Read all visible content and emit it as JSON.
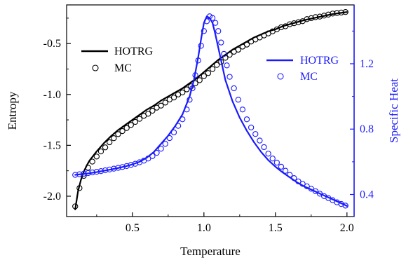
{
  "chart_data": {
    "type": "line",
    "xlabel": "Temperature",
    "ylabel_left": "Entropy",
    "ylabel_right": "Specific Heat",
    "xlim": [
      0.04,
      2.05
    ],
    "ylim_left": [
      -2.2,
      -0.12
    ],
    "ylim_right": [
      0.265,
      1.56
    ],
    "xticks": [
      "0.5",
      "1.0",
      "1.5",
      "2.0"
    ],
    "yticks_left": [
      "-0.5",
      "-1.0",
      "-1.5",
      "-2.0"
    ],
    "yticks_right": [
      "1.2",
      "0.8",
      "0.4"
    ],
    "grid": false,
    "colors": {
      "entropy": "#000000",
      "specific_heat": "#1a1aff"
    },
    "legend_left": {
      "position": "top-left",
      "entries": [
        "HOTRG",
        "MC"
      ]
    },
    "legend_right": {
      "position": "top-right",
      "entries": [
        "HOTRG",
        "MC"
      ]
    },
    "series": [
      {
        "name": "HOTRG",
        "axis": "left",
        "style": "line",
        "x": [
          0.1,
          0.12,
          0.14,
          0.16,
          0.18,
          0.2,
          0.25,
          0.3,
          0.35,
          0.4,
          0.45,
          0.5,
          0.55,
          0.6,
          0.65,
          0.7,
          0.75,
          0.8,
          0.85,
          0.9,
          0.95,
          1.0,
          1.05,
          1.1,
          1.15,
          1.2,
          1.25,
          1.3,
          1.35,
          1.4,
          1.45,
          1.5,
          1.55,
          1.6,
          1.65,
          1.7,
          1.75,
          1.8,
          1.85,
          1.9,
          1.95,
          2.0
        ],
        "y": [
          -2.13,
          -1.95,
          -1.84,
          -1.76,
          -1.7,
          -1.65,
          -1.56,
          -1.48,
          -1.41,
          -1.35,
          -1.3,
          -1.25,
          -1.2,
          -1.15,
          -1.11,
          -1.06,
          -1.02,
          -0.98,
          -0.94,
          -0.89,
          -0.84,
          -0.78,
          -0.72,
          -0.66,
          -0.61,
          -0.56,
          -0.52,
          -0.48,
          -0.44,
          -0.41,
          -0.38,
          -0.36,
          -0.33,
          -0.31,
          -0.29,
          -0.27,
          -0.255,
          -0.24,
          -0.225,
          -0.21,
          -0.2,
          -0.19
        ]
      },
      {
        "name": "MC",
        "axis": "left",
        "style": "markers",
        "x": [
          0.1,
          0.13,
          0.16,
          0.19,
          0.22,
          0.25,
          0.28,
          0.31,
          0.34,
          0.37,
          0.4,
          0.43,
          0.46,
          0.49,
          0.52,
          0.55,
          0.58,
          0.61,
          0.64,
          0.67,
          0.7,
          0.73,
          0.76,
          0.79,
          0.82,
          0.85,
          0.88,
          0.91,
          0.94,
          0.97,
          1.0,
          1.03,
          1.06,
          1.09,
          1.12,
          1.15,
          1.18,
          1.21,
          1.24,
          1.27,
          1.3,
          1.33,
          1.36,
          1.39,
          1.42,
          1.45,
          1.48,
          1.51,
          1.54,
          1.57,
          1.6,
          1.63,
          1.66,
          1.69,
          1.72,
          1.75,
          1.78,
          1.81,
          1.84,
          1.87,
          1.9,
          1.93,
          1.96,
          1.99
        ],
        "y": [
          -2.1,
          -1.92,
          -1.8,
          -1.72,
          -1.66,
          -1.61,
          -1.56,
          -1.52,
          -1.47,
          -1.43,
          -1.39,
          -1.36,
          -1.33,
          -1.3,
          -1.27,
          -1.24,
          -1.21,
          -1.19,
          -1.16,
          -1.13,
          -1.11,
          -1.08,
          -1.05,
          -1.03,
          -1.0,
          -0.98,
          -0.95,
          -0.92,
          -0.89,
          -0.86,
          -0.82,
          -0.79,
          -0.75,
          -0.71,
          -0.68,
          -0.64,
          -0.61,
          -0.58,
          -0.56,
          -0.53,
          -0.51,
          -0.48,
          -0.46,
          -0.44,
          -0.42,
          -0.4,
          -0.38,
          -0.36,
          -0.34,
          -0.33,
          -0.31,
          -0.3,
          -0.29,
          -0.28,
          -0.26,
          -0.25,
          -0.24,
          -0.235,
          -0.225,
          -0.215,
          -0.205,
          -0.2,
          -0.195,
          -0.19
        ]
      },
      {
        "name": "HOTRG",
        "axis": "right",
        "style": "line",
        "x": [
          0.1,
          0.15,
          0.2,
          0.25,
          0.3,
          0.35,
          0.4,
          0.45,
          0.5,
          0.55,
          0.6,
          0.65,
          0.7,
          0.75,
          0.8,
          0.85,
          0.9,
          0.93,
          0.96,
          0.98,
          1.0,
          1.02,
          1.04,
          1.06,
          1.08,
          1.1,
          1.12,
          1.15,
          1.2,
          1.25,
          1.3,
          1.35,
          1.4,
          1.45,
          1.5,
          1.55,
          1.6,
          1.65,
          1.7,
          1.75,
          1.8,
          1.85,
          1.9,
          1.95,
          2.0
        ],
        "y": [
          0.52,
          0.525,
          0.53,
          0.537,
          0.545,
          0.553,
          0.562,
          0.572,
          0.584,
          0.6,
          0.625,
          0.66,
          0.71,
          0.76,
          0.82,
          0.89,
          1.0,
          1.1,
          1.24,
          1.35,
          1.45,
          1.49,
          1.48,
          1.45,
          1.38,
          1.3,
          1.22,
          1.1,
          0.97,
          0.87,
          0.79,
          0.72,
          0.66,
          0.61,
          0.57,
          0.535,
          0.505,
          0.475,
          0.45,
          0.43,
          0.41,
          0.39,
          0.37,
          0.35,
          0.33
        ]
      },
      {
        "name": "MC",
        "axis": "right",
        "style": "markers",
        "x": [
          0.1,
          0.13,
          0.16,
          0.19,
          0.22,
          0.25,
          0.28,
          0.31,
          0.34,
          0.37,
          0.4,
          0.43,
          0.46,
          0.49,
          0.52,
          0.55,
          0.58,
          0.61,
          0.64,
          0.67,
          0.7,
          0.73,
          0.76,
          0.79,
          0.82,
          0.85,
          0.88,
          0.9,
          0.92,
          0.94,
          0.96,
          0.98,
          1.0,
          1.02,
          1.04,
          1.06,
          1.08,
          1.1,
          1.12,
          1.14,
          1.16,
          1.18,
          1.21,
          1.24,
          1.27,
          1.3,
          1.33,
          1.36,
          1.39,
          1.42,
          1.45,
          1.48,
          1.51,
          1.54,
          1.57,
          1.6,
          1.63,
          1.66,
          1.69,
          1.72,
          1.75,
          1.78,
          1.81,
          1.84,
          1.87,
          1.9,
          1.93,
          1.96,
          1.99
        ],
        "y": [
          0.52,
          0.524,
          0.527,
          0.531,
          0.535,
          0.539,
          0.543,
          0.548,
          0.553,
          0.558,
          0.563,
          0.568,
          0.574,
          0.581,
          0.588,
          0.597,
          0.607,
          0.62,
          0.635,
          0.655,
          0.68,
          0.71,
          0.745,
          0.78,
          0.82,
          0.86,
          0.92,
          0.98,
          1.05,
          1.13,
          1.22,
          1.31,
          1.4,
          1.46,
          1.49,
          1.48,
          1.45,
          1.4,
          1.33,
          1.26,
          1.19,
          1.12,
          1.05,
          0.98,
          0.92,
          0.86,
          0.81,
          0.77,
          0.73,
          0.69,
          0.65,
          0.62,
          0.595,
          0.57,
          0.545,
          0.52,
          0.5,
          0.48,
          0.465,
          0.45,
          0.435,
          0.42,
          0.405,
          0.39,
          0.378,
          0.365,
          0.352,
          0.342,
          0.332
        ]
      }
    ]
  }
}
